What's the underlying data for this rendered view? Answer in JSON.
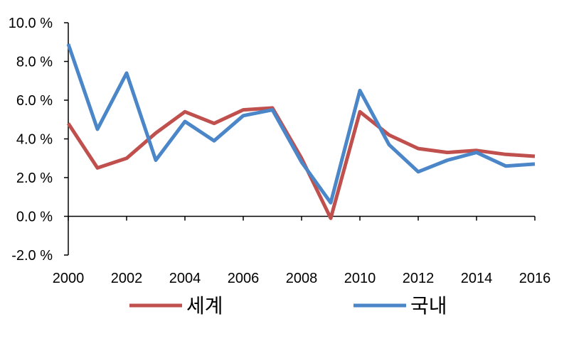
{
  "chart_data": {
    "type": "line",
    "x": [
      2000,
      2001,
      2002,
      2003,
      2004,
      2005,
      2006,
      2007,
      2008,
      2009,
      2010,
      2011,
      2012,
      2013,
      2014,
      2015,
      2016
    ],
    "ylim": [
      -2.0,
      10.0
    ],
    "xlim": [
      2000,
      2016
    ],
    "y_ticks": [
      "-2.0 %",
      "0.0 %",
      "2.0 %",
      "4.0 %",
      "6.0 %",
      "8.0 %",
      "10.0 %"
    ],
    "x_ticks": [
      "2000",
      "2002",
      "2004",
      "2006",
      "2008",
      "2010",
      "2012",
      "2014",
      "2016"
    ],
    "grid": false,
    "legend_position": "bottom",
    "series": [
      {
        "name": "세계",
        "color": "#c0504d",
        "values": [
          4.8,
          2.5,
          3.0,
          4.3,
          5.4,
          4.8,
          5.5,
          5.6,
          3.0,
          -0.1,
          5.4,
          4.2,
          3.5,
          3.3,
          3.4,
          3.2,
          3.1
        ]
      },
      {
        "name": "국내",
        "color": "#4a86c8",
        "values": [
          8.9,
          4.5,
          7.4,
          2.9,
          4.9,
          3.9,
          5.2,
          5.5,
          2.8,
          0.7,
          6.5,
          3.7,
          2.3,
          2.9,
          3.3,
          2.6,
          2.7
        ]
      }
    ]
  }
}
